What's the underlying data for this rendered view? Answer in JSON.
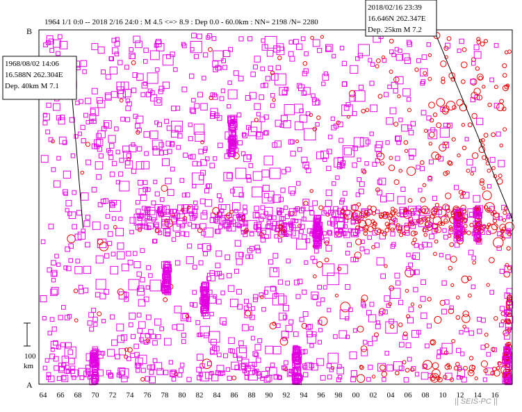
{
  "header": {
    "title": "1964 1/1 0:0 -- 2018 2/16 24:0  : M 4.5 <=> 8.9   :  Dep 0.0 - 60.0km :  NN= 2198 /N= 2280"
  },
  "chart_data": {
    "type": "scatter",
    "x_axis": {
      "ticks": [
        "64",
        "66",
        "68",
        "70",
        "72",
        "74",
        "76",
        "78",
        "80",
        "82",
        "84",
        "86",
        "88",
        "90",
        "92",
        "94",
        "96",
        "98",
        "00",
        "02",
        "04",
        "06",
        "08",
        "10",
        "12",
        "14",
        "16"
      ]
    },
    "y_axis": {
      "top_label": "B",
      "bottom_label": "A"
    },
    "scale_bar": {
      "value": "100",
      "unit": "km"
    },
    "callouts": [
      {
        "id": "left",
        "lines": [
          "1968/08/02 14:06",
          "16.588N   262.304E",
          "Dep. 40km    M 7.1"
        ],
        "event_year": 1968.6,
        "event_pos": 0.56
      },
      {
        "id": "right",
        "lines": [
          "2018/02/16 23:39",
          "16.646N   262.347E",
          "Dep. 25km    M 7.2"
        ],
        "event_year": 2018.1,
        "event_pos": 0.54
      }
    ],
    "series": [
      {
        "symbol": "square",
        "color": "#e000e0"
      },
      {
        "symbol": "circle",
        "color": "#e00000"
      }
    ],
    "watermark": "|| SEIS-PC ||"
  }
}
